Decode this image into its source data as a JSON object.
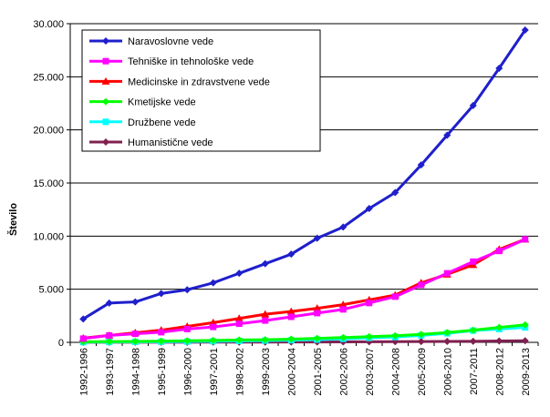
{
  "chart_data": {
    "type": "line",
    "title": "",
    "xlabel": "",
    "ylabel": "Število",
    "ylim": [
      0,
      30000
    ],
    "yticks": [
      0,
      5000,
      10000,
      15000,
      20000,
      25000,
      30000
    ],
    "ytick_labels": [
      "0",
      "5.000",
      "10.000",
      "15.000",
      "20.000",
      "25.000",
      "30.000"
    ],
    "categories": [
      "1992-1996",
      "1993-1997",
      "1994-1998",
      "1995-1999",
      "1996-2000",
      "1997-2001",
      "1998-2002",
      "1999-2003",
      "2000-2004",
      "2001-2005",
      "2002-2006",
      "2003-2007",
      "2004-2008",
      "2005-2009",
      "2006-2010",
      "2007-2011",
      "2008-2012",
      "2009-2013"
    ],
    "grid": "horizontal",
    "legend_placement": "top-left",
    "series": [
      {
        "name": "Naravoslovne vede",
        "color": "#1F1FCC",
        "marker": "diamond",
        "values": [
          2200,
          3700,
          3800,
          4600,
          4950,
          5600,
          6500,
          7400,
          8300,
          9800,
          10850,
          12600,
          14100,
          16700,
          19500,
          22300,
          25800,
          29400
        ]
      },
      {
        "name": "Tehniške in tehnološke vede",
        "color": "#FF00FF",
        "marker": "square",
        "values": [
          350,
          650,
          800,
          950,
          1250,
          1450,
          1750,
          2050,
          2400,
          2750,
          3100,
          3700,
          4300,
          5400,
          6500,
          7600,
          8600,
          9700
        ]
      },
      {
        "name": "Medicinske in zdravstvene vede",
        "color": "#FF0000",
        "marker": "triangle",
        "values": [
          400,
          650,
          900,
          1150,
          1500,
          1850,
          2250,
          2650,
          2900,
          3200,
          3550,
          4000,
          4450,
          5600,
          6400,
          7300,
          8750,
          9700
        ]
      },
      {
        "name": "Kmetijske vede",
        "color": "#00FF00",
        "marker": "diamond",
        "values": [
          50,
          70,
          90,
          120,
          150,
          180,
          220,
          250,
          300,
          370,
          450,
          540,
          620,
          750,
          920,
          1150,
          1400,
          1650
        ]
      },
      {
        "name": "Družbene vede",
        "color": "#00FFFF",
        "marker": "square",
        "values": [
          20,
          30,
          40,
          55,
          75,
          100,
          130,
          160,
          200,
          260,
          330,
          420,
          500,
          650,
          850,
          1100,
          1250,
          1400
        ]
      },
      {
        "name": "Humanistične vede",
        "color": "#7F2050",
        "marker": "diamond",
        "values": [
          5,
          8,
          10,
          12,
          15,
          18,
          22,
          26,
          30,
          36,
          42,
          50,
          60,
          70,
          85,
          100,
          130,
          150
        ]
      }
    ]
  }
}
